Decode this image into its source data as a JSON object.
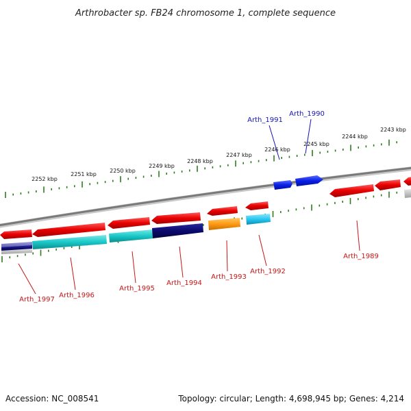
{
  "title": "Arthrobacter sp. FB24 chromosome 1, complete sequence",
  "footer": {
    "accession": "Accession: NC_008541",
    "summary": "Topology: circular; Length: 4,698,945 bp; Genes: 4,214"
  },
  "colors": {
    "reverse_gene": "#e80000",
    "forward_gene": "#0a1ee6",
    "backbone": "#8c8c8c",
    "tick": "#2a7d1a",
    "label_red": "#c81414",
    "label_blue": "#1414b4",
    "cyan": "#19c8c8",
    "navy": "#0a0a6e",
    "orange": "#ff9a14",
    "light_blue": "#28c8f0",
    "slate": "#6060b4"
  },
  "scale_labels": [
    "2252 kbp",
    "2251 kbp",
    "2250 kbp",
    "2249 kbp",
    "2248 kbp",
    "2247 kbp",
    "2246 kbp",
    "2245 kbp",
    "2244 kbp",
    "2243 kbp"
  ],
  "gene_labels": {
    "forward": [
      "Arth_1991",
      "Arth_1990"
    ],
    "reverse": [
      "Arth_1997",
      "Arth_1996",
      "Arth_1995",
      "Arth_1994",
      "Arth_1993",
      "Arth_1992",
      "Arth_1989"
    ]
  }
}
